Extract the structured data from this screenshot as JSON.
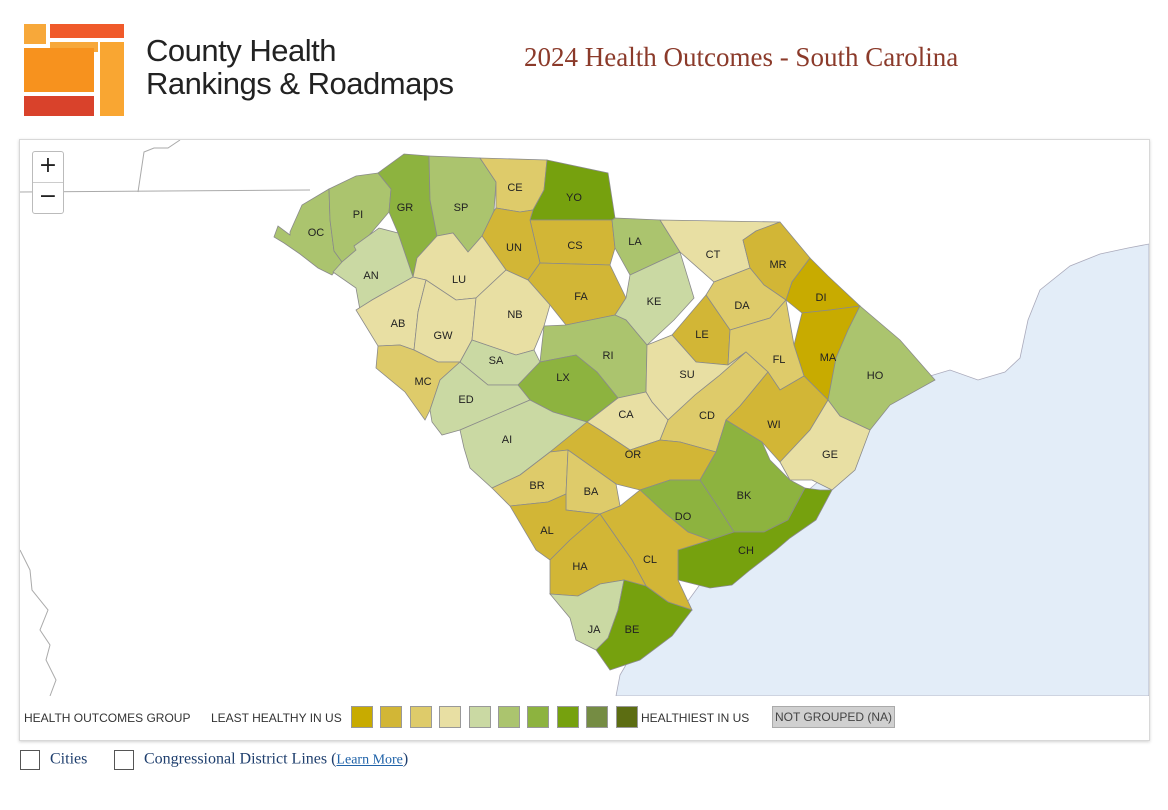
{
  "brand": {
    "line1": "County Health",
    "line2": "Rankings & Roadmaps"
  },
  "title": "2024 Health Outcomes - South Carolina",
  "zoom": {
    "in": "+",
    "out": "−"
  },
  "colors": {
    "accent_title": "#8b3a2a",
    "water": "#e3edf8",
    "scale": [
      "#c8ab00",
      "#d2b636",
      "#decb6a",
      "#e8dfa3",
      "#cad9a3",
      "#abc46e",
      "#8db33f",
      "#76a10e",
      "#758c43",
      "#5c6d12"
    ],
    "not_grouped": "#d0d0d0"
  },
  "legend": {
    "group_label": "HEALTH OUTCOMES GROUP",
    "least": "LEAST HEALTHY IN US",
    "healthiest": "HEALTHIEST IN US",
    "not_grouped": "NOT GROUPED (NA)"
  },
  "counties": [
    {
      "abbr": "OC",
      "group": 5
    },
    {
      "abbr": "PI",
      "group": 5
    },
    {
      "abbr": "GR",
      "group": 6
    },
    {
      "abbr": "SP",
      "group": 5
    },
    {
      "abbr": "CE",
      "group": 2
    },
    {
      "abbr": "YO",
      "group": 7
    },
    {
      "abbr": "CS",
      "group": 1
    },
    {
      "abbr": "UN",
      "group": 1
    },
    {
      "abbr": "LA",
      "group": 5
    },
    {
      "abbr": "CT",
      "group": 3
    },
    {
      "abbr": "MR",
      "group": 1
    },
    {
      "abbr": "AN",
      "group": 4
    },
    {
      "abbr": "LU",
      "group": 3
    },
    {
      "abbr": "FA",
      "group": 1
    },
    {
      "abbr": "KE",
      "group": 4
    },
    {
      "abbr": "DI",
      "group": 0
    },
    {
      "abbr": "DA",
      "group": 2
    },
    {
      "abbr": "AB",
      "group": 3
    },
    {
      "abbr": "GW",
      "group": 3
    },
    {
      "abbr": "NB",
      "group": 3
    },
    {
      "abbr": "LE",
      "group": 1
    },
    {
      "abbr": "MA",
      "group": 0
    },
    {
      "abbr": "SA",
      "group": 4
    },
    {
      "abbr": "RI",
      "group": 5
    },
    {
      "abbr": "FL",
      "group": 2
    },
    {
      "abbr": "HO",
      "group": 5
    },
    {
      "abbr": "MC",
      "group": 2
    },
    {
      "abbr": "LX",
      "group": 6
    },
    {
      "abbr": "SU",
      "group": 3
    },
    {
      "abbr": "ED",
      "group": 4
    },
    {
      "abbr": "CA",
      "group": 3
    },
    {
      "abbr": "CD",
      "group": 2
    },
    {
      "abbr": "WI",
      "group": 1
    },
    {
      "abbr": "AI",
      "group": 4
    },
    {
      "abbr": "OR",
      "group": 1
    },
    {
      "abbr": "GE",
      "group": 3
    },
    {
      "abbr": "BR",
      "group": 2
    },
    {
      "abbr": "BA",
      "group": 2
    },
    {
      "abbr": "BK",
      "group": 6
    },
    {
      "abbr": "DO",
      "group": 6
    },
    {
      "abbr": "AL",
      "group": 1
    },
    {
      "abbr": "CH",
      "group": 7
    },
    {
      "abbr": "CL",
      "group": 1
    },
    {
      "abbr": "HA",
      "group": 1
    },
    {
      "abbr": "JA",
      "group": 4
    },
    {
      "abbr": "BE",
      "group": 7
    }
  ],
  "options": {
    "cities": "Cities",
    "districts": "Congressional District Lines (",
    "learn_more": "Learn More",
    "close_paren": ")"
  }
}
